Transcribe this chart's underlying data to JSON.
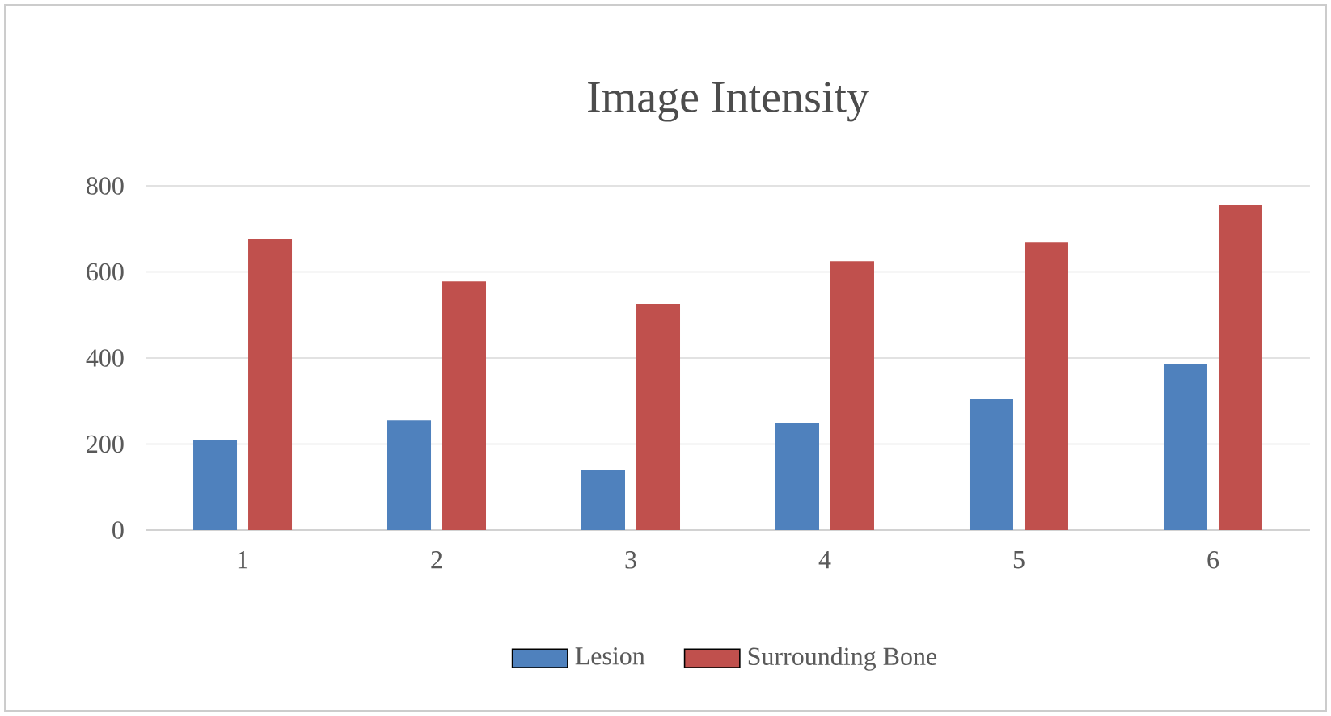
{
  "chart_data": {
    "type": "bar",
    "title": "Image Intensity",
    "categories": [
      "1",
      "2",
      "3",
      "4",
      "5",
      "6"
    ],
    "series": [
      {
        "name": "Lesion",
        "color": "#4f81bd",
        "values": [
          210,
          255,
          140,
          248,
          304,
          387
        ]
      },
      {
        "name": "Surrounding Bone",
        "color": "#c0504d",
        "values": [
          676,
          578,
          526,
          625,
          668,
          755
        ]
      }
    ],
    "ylim": [
      0,
      800
    ],
    "yticks": [
      0,
      200,
      400,
      600,
      800
    ],
    "grid": "y",
    "legend": "bottom"
  }
}
